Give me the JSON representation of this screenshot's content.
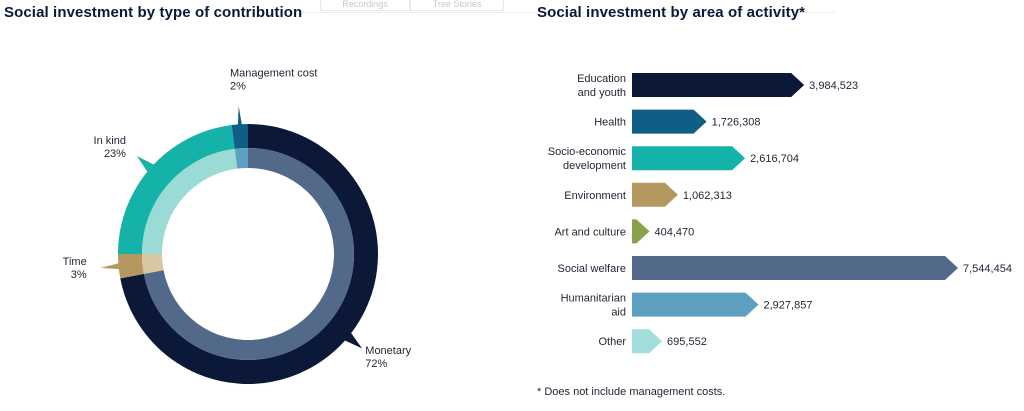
{
  "ghost_tabs": [
    "Recordings",
    "Tree Stories"
  ],
  "titles": {
    "left": "Social investment by type of contribution",
    "right": "Social investment by area of activity*"
  },
  "footnote": "* Does not include management costs.",
  "chart_data": [
    {
      "type": "pie",
      "style": "donut",
      "title": "Social investment by type of contribution",
      "unit": "%",
      "slices": [
        {
          "name": "Monetary",
          "label_lines": [
            "Monetary",
            "72%"
          ],
          "value": 72,
          "color": "#0c1838",
          "inner_color": "#53698a",
          "label_side": "right"
        },
        {
          "name": "Time",
          "label_lines": [
            "Time",
            "3%"
          ],
          "value": 3,
          "color": "#b5985f",
          "inner_color": "#d8c7a1",
          "label_side": "left"
        },
        {
          "name": "In kind",
          "label_lines": [
            "In kind",
            "23%"
          ],
          "value": 23,
          "color": "#14b2a9",
          "inner_color": "#9adbd6",
          "label_side": "left"
        },
        {
          "name": "Management cost",
          "label_lines": [
            "Management cost",
            "2%"
          ],
          "value": 2,
          "color": "#0e5e85",
          "inner_color": "#5ea0c0",
          "label_side": "top"
        }
      ]
    },
    {
      "type": "bar",
      "orientation": "horizontal",
      "title": "Social investment by area of activity*",
      "categories": [
        "Education and youth",
        "Health",
        "Socio-economic development",
        "Environment",
        "Art and culture",
        "Social welfare",
        "Humanitarian aid",
        "Other"
      ],
      "category_label_lines": [
        [
          "Education",
          "and youth"
        ],
        [
          "Health"
        ],
        [
          "Socio-economic",
          "development"
        ],
        [
          "Environment"
        ],
        [
          "Art and culture"
        ],
        [
          "Social welfare"
        ],
        [
          "Humanitarian",
          "aid"
        ],
        [
          "Other"
        ]
      ],
      "values": [
        3984523,
        1726308,
        2616704,
        1062313,
        404470,
        7544454,
        2927857,
        695552
      ],
      "value_labels": [
        "3,984,523",
        "1,726,308",
        "2,616,704",
        "1,062,313",
        "404,470",
        "7,544,454",
        "2,927,857",
        "695,552"
      ],
      "colors": [
        "#0c1838",
        "#0e5e85",
        "#14b2a9",
        "#b5985f",
        "#8aa04a",
        "#53698a",
        "#5ea0c0",
        "#a3dddb"
      ],
      "xlim": [
        0,
        7544454
      ]
    }
  ]
}
